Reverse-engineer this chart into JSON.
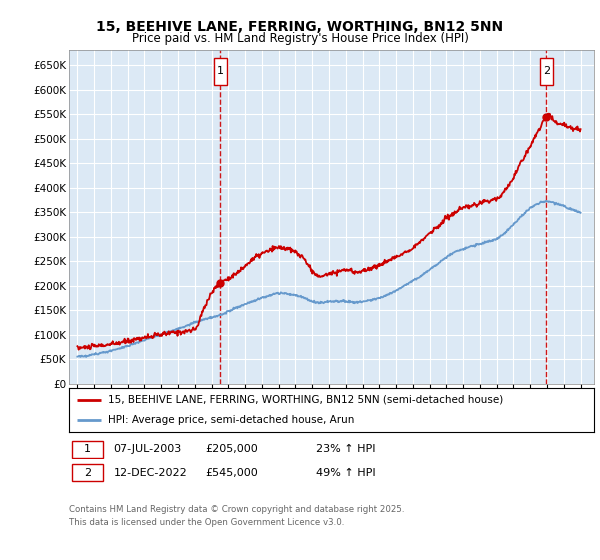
{
  "title_line1": "15, BEEHIVE LANE, FERRING, WORTHING, BN12 5NN",
  "title_line2": "Price paid vs. HM Land Registry's House Price Index (HPI)",
  "bg_color": "#dce9f5",
  "grid_color": "#ffffff",
  "red_color": "#cc0000",
  "blue_color": "#6699cc",
  "purchase1_date": 2003.52,
  "purchase1_price": 205000,
  "purchase2_date": 2022.95,
  "purchase2_price": 545000,
  "legend_line1": "15, BEEHIVE LANE, FERRING, WORTHING, BN12 5NN (semi-detached house)",
  "legend_line2": "HPI: Average price, semi-detached house, Arun",
  "table_row1": [
    "1",
    "07-JUL-2003",
    "£205,000",
    "23% ↑ HPI"
  ],
  "table_row2": [
    "2",
    "12-DEC-2022",
    "£545,000",
    "49% ↑ HPI"
  ],
  "footer": "Contains HM Land Registry data © Crown copyright and database right 2025.\nThis data is licensed under the Open Government Licence v3.0.",
  "ylim": [
    0,
    680000
  ],
  "yticks": [
    0,
    50000,
    100000,
    150000,
    200000,
    250000,
    300000,
    350000,
    400000,
    450000,
    500000,
    550000,
    600000,
    650000
  ],
  "xlim_start": 1994.5,
  "xlim_end": 2025.8,
  "red_x_pts": [
    1995.0,
    1995.5,
    1996.0,
    1996.5,
    1997.0,
    1997.5,
    1998.0,
    1998.5,
    1999.0,
    1999.5,
    2000.0,
    2000.5,
    2001.0,
    2001.5,
    2002.0,
    2002.5,
    2003.0,
    2003.52,
    2004.0,
    2004.5,
    2005.0,
    2005.5,
    2006.0,
    2006.5,
    2007.0,
    2007.5,
    2008.0,
    2008.5,
    2009.0,
    2009.5,
    2010.0,
    2010.5,
    2011.0,
    2011.5,
    2012.0,
    2012.5,
    2013.0,
    2013.5,
    2014.0,
    2014.5,
    2015.0,
    2015.5,
    2016.0,
    2016.5,
    2017.0,
    2017.5,
    2018.0,
    2018.5,
    2019.0,
    2019.5,
    2020.0,
    2020.5,
    2021.0,
    2021.5,
    2022.0,
    2022.5,
    2022.95,
    2023.0,
    2023.5,
    2024.0,
    2024.5,
    2025.0
  ],
  "red_y_pts": [
    73000,
    74000,
    76000,
    78000,
    80000,
    83000,
    87000,
    91000,
    94000,
    97000,
    100000,
    103000,
    105000,
    107000,
    110000,
    150000,
    185000,
    205000,
    215000,
    225000,
    240000,
    255000,
    265000,
    272000,
    278000,
    275000,
    268000,
    255000,
    230000,
    218000,
    225000,
    228000,
    232000,
    228000,
    230000,
    235000,
    242000,
    250000,
    258000,
    268000,
    278000,
    290000,
    308000,
    320000,
    338000,
    348000,
    358000,
    362000,
    368000,
    373000,
    378000,
    395000,
    420000,
    455000,
    485000,
    518000,
    545000,
    548000,
    535000,
    528000,
    522000,
    518000
  ],
  "blue_x_pts": [
    1995.0,
    1995.5,
    1996.0,
    1996.5,
    1997.0,
    1997.5,
    1998.0,
    1998.5,
    1999.0,
    1999.5,
    2000.0,
    2000.5,
    2001.0,
    2001.5,
    2002.0,
    2002.5,
    2003.0,
    2003.5,
    2004.0,
    2004.5,
    2005.0,
    2005.5,
    2006.0,
    2006.5,
    2007.0,
    2007.5,
    2008.0,
    2008.5,
    2009.0,
    2009.5,
    2010.0,
    2010.5,
    2011.0,
    2011.5,
    2012.0,
    2012.5,
    2013.0,
    2013.5,
    2014.0,
    2014.5,
    2015.0,
    2015.5,
    2016.0,
    2016.5,
    2017.0,
    2017.5,
    2018.0,
    2018.5,
    2019.0,
    2019.5,
    2020.0,
    2020.5,
    2021.0,
    2021.5,
    2022.0,
    2022.5,
    2023.0,
    2023.5,
    2024.0,
    2024.5,
    2025.0
  ],
  "blue_y_pts": [
    55000,
    57000,
    60000,
    63000,
    67000,
    72000,
    77000,
    83000,
    89000,
    95000,
    100000,
    106000,
    112000,
    118000,
    125000,
    130000,
    135000,
    140000,
    148000,
    155000,
    162000,
    168000,
    175000,
    180000,
    185000,
    183000,
    180000,
    175000,
    168000,
    165000,
    167000,
    168000,
    168000,
    166000,
    167000,
    170000,
    175000,
    182000,
    190000,
    200000,
    210000,
    220000,
    233000,
    245000,
    258000,
    268000,
    275000,
    280000,
    285000,
    290000,
    295000,
    308000,
    325000,
    342000,
    358000,
    368000,
    372000,
    368000,
    362000,
    355000,
    350000
  ]
}
